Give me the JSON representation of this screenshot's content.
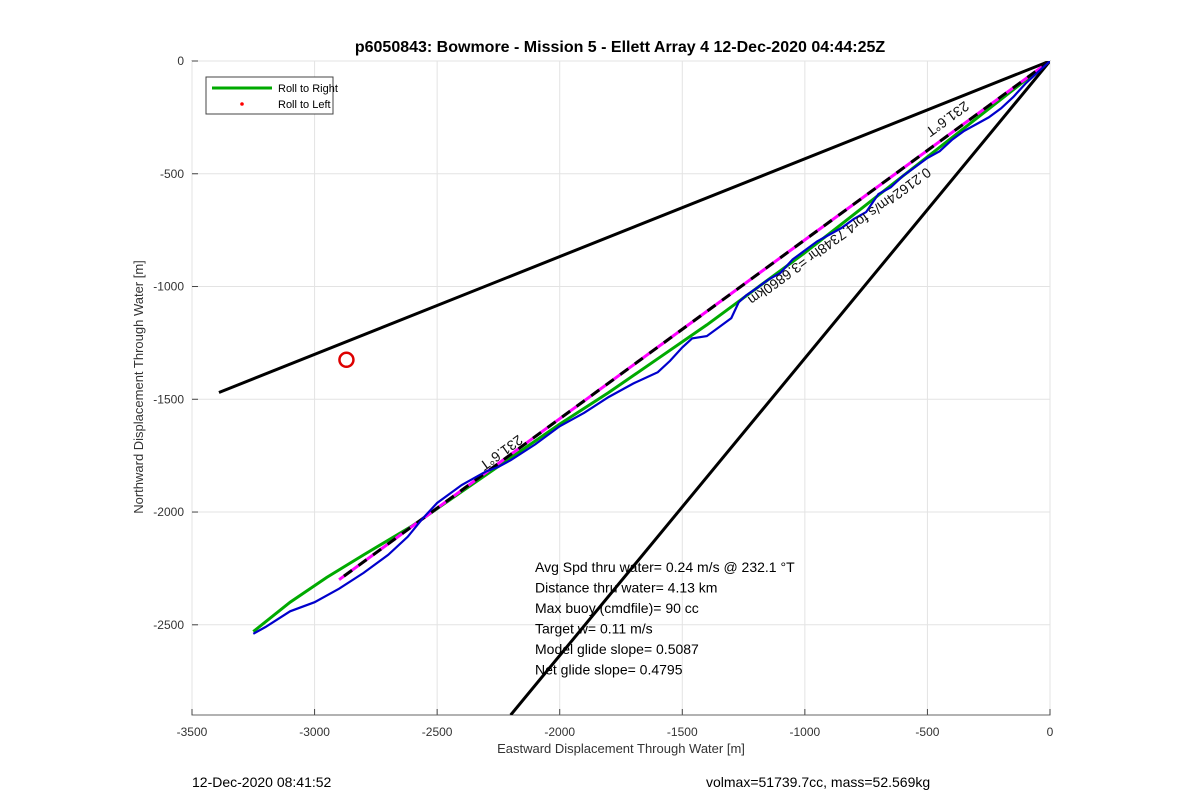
{
  "chart_data": {
    "type": "line",
    "title": "p6050843: Bowmore - Mission 5 - Ellett Array 4 12-Dec-2020 04:44:25Z",
    "xlabel": "Eastward Displacement Through Water [m]",
    "ylabel": "Northward Displacement Through Water [m]",
    "xlim": [
      -3500,
      0
    ],
    "ylim": [
      -2900,
      0
    ],
    "xticks": [
      -3500,
      -3000,
      -2500,
      -2000,
      -1500,
      -1000,
      -500,
      0
    ],
    "yticks": [
      0,
      -500,
      -1000,
      -1500,
      -2000,
      -2500
    ],
    "xtick_labels": [
      "-3500",
      "-3000",
      "-2500",
      "-2000",
      "-1500",
      "-1000",
      "-500",
      "0"
    ],
    "ytick_labels": [
      "0",
      "-500",
      "-1000",
      "-1500",
      "-2000",
      "-2500"
    ],
    "grid": true,
    "legend_position": "top-left",
    "legend": [
      {
        "label": "Roll to Right",
        "color": "#00aa00",
        "style": "line"
      },
      {
        "label": "Roll to Left",
        "color": "#ff0000",
        "style": "dot"
      }
    ],
    "cone_lines": [
      {
        "x": [
          0,
          -3390
        ],
        "y": [
          0,
          -1470
        ]
      },
      {
        "x": [
          0,
          -2200
        ],
        "y": [
          0,
          -2900
        ]
      }
    ],
    "model_track": {
      "x": [
        0,
        -2900
      ],
      "y": [
        0,
        -2300
      ]
    },
    "series": [
      {
        "name": "Roll to Right",
        "color": "#00aa00",
        "x": [
          -3250,
          -3100,
          -2950,
          -2800,
          -2600,
          -2400,
          -2200,
          -2000,
          -1800,
          -1600,
          -1400,
          -1200,
          -1000,
          -800,
          -600,
          -400,
          -200,
          0
        ],
        "y": [
          -2530,
          -2400,
          -2290,
          -2190,
          -2060,
          -1910,
          -1760,
          -1610,
          -1470,
          -1320,
          -1170,
          -1010,
          -850,
          -680,
          -510,
          -340,
          -170,
          0
        ]
      },
      {
        "name": "",
        "color": "#0000cc",
        "x": [
          -3250,
          -3200,
          -3100,
          -3000,
          -2900,
          -2800,
          -2700,
          -2620,
          -2560,
          -2500,
          -2450,
          -2400,
          -2350,
          -2300,
          -2250,
          -2200,
          -2100,
          -2000,
          -1900,
          -1800,
          -1700,
          -1600,
          -1550,
          -1500,
          -1460,
          -1400,
          -1350,
          -1300,
          -1270,
          -1240,
          -1200,
          -1150,
          -1100,
          -1050,
          -1000,
          -950,
          -900,
          -850,
          -800,
          -750,
          -700,
          -650,
          -600,
          -550,
          -500,
          -450,
          -400,
          -350,
          -300,
          -250,
          -200,
          -150,
          -100,
          -50,
          0
        ],
        "y": [
          -2540,
          -2510,
          -2440,
          -2400,
          -2340,
          -2270,
          -2190,
          -2110,
          -2030,
          -1960,
          -1920,
          -1880,
          -1850,
          -1820,
          -1800,
          -1770,
          -1700,
          -1620,
          -1560,
          -1490,
          -1430,
          -1380,
          -1330,
          -1270,
          -1230,
          -1220,
          -1180,
          -1140,
          -1070,
          -1040,
          -1010,
          -970,
          -940,
          -880,
          -840,
          -800,
          -770,
          -740,
          -700,
          -670,
          -590,
          -560,
          -510,
          -470,
          -430,
          -400,
          -350,
          -310,
          -280,
          -250,
          -210,
          -160,
          -100,
          -50,
          0
        ]
      }
    ],
    "circle_marker": {
      "x": -2870,
      "y": -1325,
      "color": "#dd0000"
    },
    "annotations": [
      {
        "text": "231.6°T",
        "x": -2250,
        "y": -1720,
        "angle_data": true
      },
      {
        "text": "231.6°T",
        "x": -430,
        "y": -240,
        "angle_data": true
      },
      {
        "text": "0.21624m/s for4.7348hr =3.6860km",
        "x": -870,
        "y": -760,
        "angle_data": true
      }
    ],
    "stats": [
      "Avg Spd thru water=  0.24 m/s @ 232.1 °T",
      "Distance thru water=  4.13 km",
      "Max buoy (cmdfile)= 90 cc",
      "Target w= 0.11 m/s",
      "Model glide slope= 0.5087",
      "Net glide slope= 0.4795"
    ]
  },
  "footer": {
    "left": "12-Dec-2020 08:41:52",
    "right": "volmax=51739.7cc, mass=52.569kg"
  }
}
